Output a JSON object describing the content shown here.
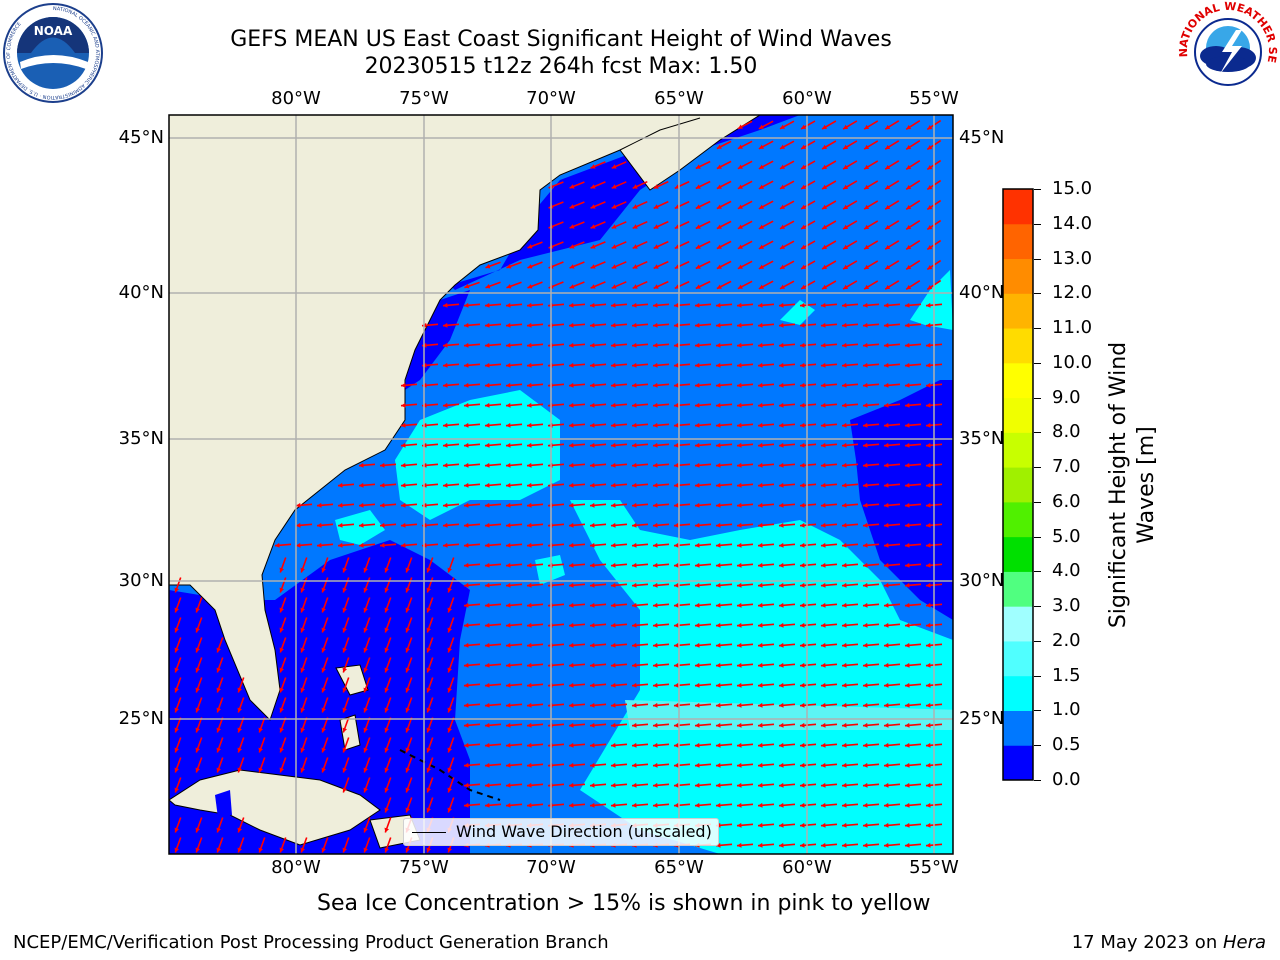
{
  "title": {
    "line1": "GEFS MEAN US East Coast Significant Height of Wind Waves",
    "line2": "20230515 t12z 264h fcst   Max: 1.50"
  },
  "logos": {
    "noaa": {
      "name": "NOAA",
      "ring_text": "NATIONAL OCEANIC AND ATMOSPHERIC ADMINISTRATION · U.S. DEPARTMENT OF COMMERCE"
    },
    "nws": {
      "ring_text": "NATIONAL WEATHER SERVICE"
    }
  },
  "map": {
    "lon_ticks": [
      "80°W",
      "75°W",
      "70°W",
      "65°W",
      "60°W",
      "55°W"
    ],
    "lat_ticks": [
      "45°N",
      "40°N",
      "35°N",
      "30°N",
      "25°N"
    ],
    "colors": {
      "land": "#efeedb",
      "ocean_0": "#0000ff",
      "ocean_05": "#0078ff",
      "ocean_1": "#00ffff",
      "arrow": "#ff0000",
      "grid": "#b0b0b0"
    }
  },
  "legend": {
    "label": "Wind Wave Direction (unscaled)"
  },
  "colorbar": {
    "label": "Significant Height of Wind Waves [m]",
    "ticks": [
      "15.0",
      "14.0",
      "13.0",
      "12.0",
      "11.0",
      "10.0",
      "9.0",
      "8.0",
      "7.0",
      "6.0",
      "5.0",
      "4.0",
      "3.0",
      "2.0",
      "1.5",
      "1.0",
      "0.5",
      "0.0"
    ],
    "colors": [
      "#0000ff",
      "#0078ff",
      "#00ffff",
      "#50ffff",
      "#a0ffff",
      "#50ff80",
      "#00e000",
      "#50f000",
      "#a0f000",
      "#c8ff00",
      "#f0ff00",
      "#ffff00",
      "#ffdc00",
      "#ffb400",
      "#ff8c00",
      "#ff6400",
      "#ff3200",
      "#ff0000"
    ]
  },
  "note": "Sea Ice Concentration > 15% is shown in pink to yellow",
  "footer": {
    "left": "NCEP/EMC/Verification Post Processing Product Generation Branch",
    "date": "17 May 2023 on ",
    "machine": "Hera"
  }
}
